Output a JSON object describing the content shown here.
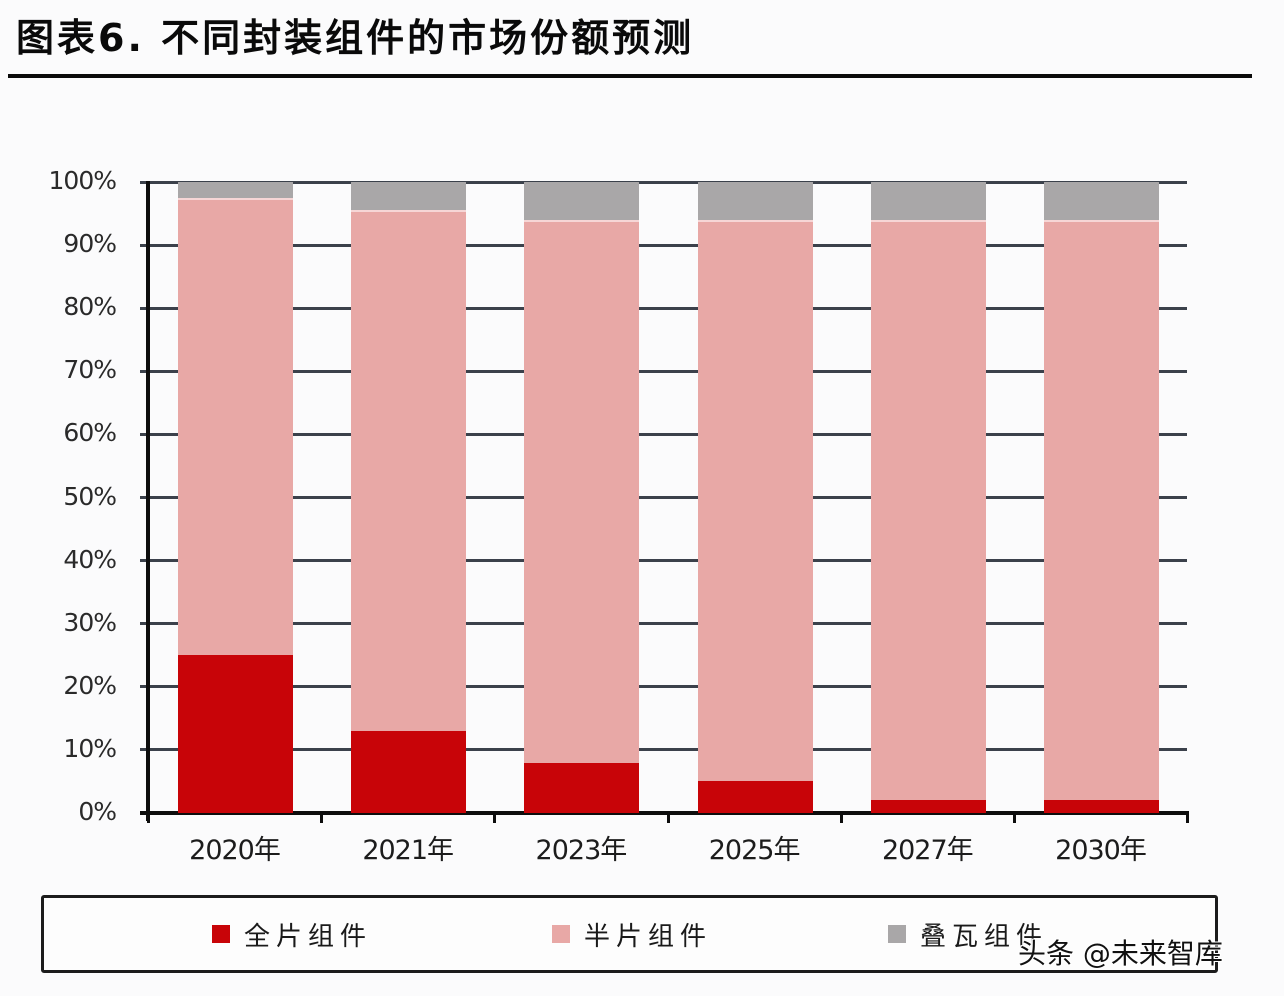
{
  "header": {
    "title": "图表6. 不同封装组件的市场份额预测"
  },
  "colors": {
    "full": "#c80408",
    "half": "#e8a8a6",
    "shingled": "#a9a7a8",
    "grid": "#3b414b"
  },
  "legend": {
    "items": [
      {
        "label": "全片组件",
        "color": "#c80408"
      },
      {
        "label": "半片组件",
        "color": "#e8a8a6"
      },
      {
        "label": "叠瓦组件",
        "color": "#a9a7a8"
      }
    ]
  },
  "watermark": "头条 @未来智库",
  "chart_data": {
    "type": "bar",
    "stacked": true,
    "title": "图表6. 不同封装组件的市场份额预测",
    "xlabel": "",
    "ylabel": "",
    "ylim": [
      0,
      100
    ],
    "y_unit": "%",
    "y_ticks": [
      "0%",
      "10%",
      "20%",
      "30%",
      "40%",
      "50%",
      "60%",
      "70%",
      "80%",
      "90%",
      "100%"
    ],
    "categories": [
      "2020年",
      "2021年",
      "2023年",
      "2025年",
      "2027年",
      "2030年"
    ],
    "series": [
      {
        "name": "全片组件",
        "values": [
          25,
          13,
          8,
          5,
          2,
          2
        ]
      },
      {
        "name": "半片组件",
        "values": [
          72.5,
          82.5,
          86,
          89,
          92,
          92
        ]
      },
      {
        "name": "叠瓦组件",
        "values": [
          2.5,
          4.5,
          6,
          6,
          6,
          6
        ]
      }
    ],
    "grid": true,
    "legend_position": "bottom"
  }
}
